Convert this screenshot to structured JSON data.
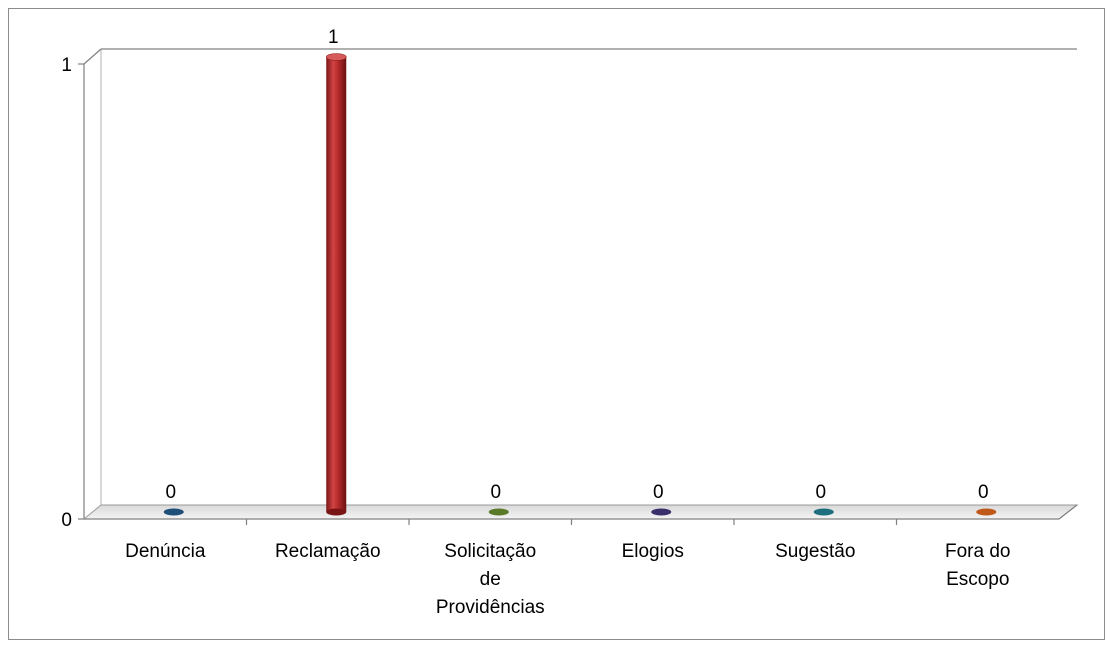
{
  "chart_data": {
    "type": "bar",
    "categories": [
      [
        "Denúncia"
      ],
      [
        "Reclamação"
      ],
      [
        "Solicitação",
        "de",
        "Providências"
      ],
      [
        "Elogios"
      ],
      [
        "Sugestão"
      ],
      [
        "Fora do",
        "Escopo"
      ]
    ],
    "values": [
      0,
      1,
      0,
      0,
      0,
      0
    ],
    "data_labels": [
      "0",
      "1",
      "0",
      "0",
      "0",
      "0"
    ],
    "colors": [
      "#1f4e79",
      "#b52a2a",
      "#5a7a2a",
      "#3b2f6b",
      "#1f6e7e",
      "#c0581a"
    ],
    "yticks": [
      "0",
      "1"
    ],
    "ylim": [
      0,
      1
    ],
    "grid": true,
    "style": "3d-cylinder"
  }
}
